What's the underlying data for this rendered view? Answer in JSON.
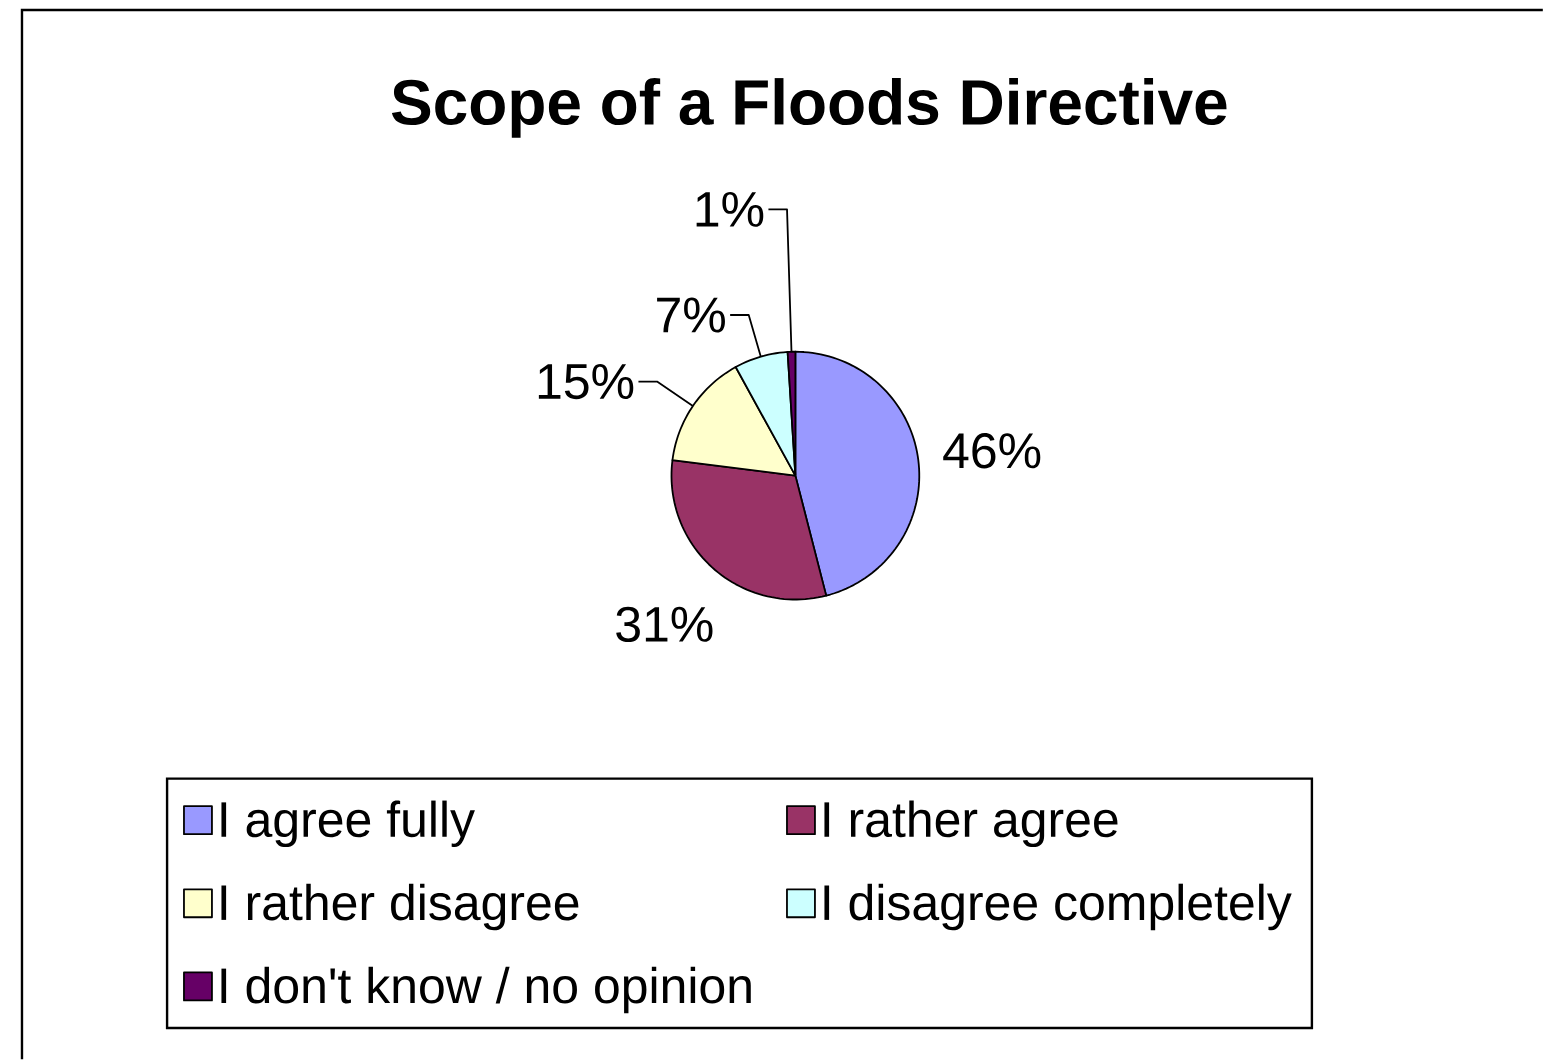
{
  "chart_data": {
    "type": "pie",
    "title": "Scope of a Floods Directive",
    "categories": [
      "I agree fully",
      "I rather agree",
      "I rather disagree",
      "I disagree completely",
      "I don't know / no opinion"
    ],
    "values": [
      46,
      31,
      15,
      7,
      1
    ],
    "colors": [
      "#9999ff",
      "#993366",
      "#ffffcc",
      "#ccffff",
      "#660066"
    ],
    "value_labels": [
      "46%",
      "31%",
      "15%",
      "7%",
      "1%"
    ],
    "legend": "bottom"
  }
}
